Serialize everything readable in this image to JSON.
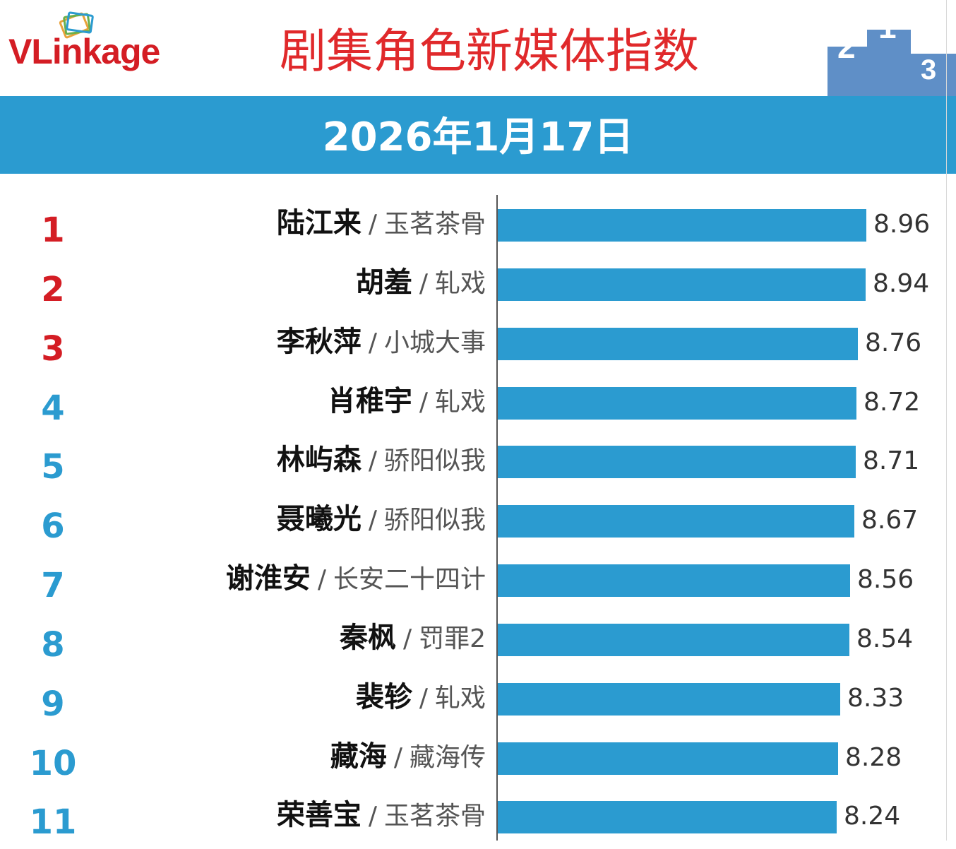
{
  "header": {
    "brand": "VLinkage",
    "title": "剧集角色新媒体指数",
    "podium_digits": [
      "2",
      "1",
      "3"
    ]
  },
  "date": "2026年1月17日",
  "colors": {
    "bar": "#2b9bd0",
    "rank_top": "#d41d24",
    "rank_other": "#2b9bd0",
    "title": "#e0292b"
  },
  "chart_data": {
    "type": "bar",
    "orientation": "horizontal",
    "title": "剧集角色新媒体指数",
    "subtitle": "2026年1月17日",
    "xlim": [
      0,
      9.5
    ],
    "items": [
      {
        "rank": "1",
        "role": "陆江来",
        "show": "玉茗茶骨",
        "value": 8.96,
        "label": "8.96"
      },
      {
        "rank": "2",
        "role": "胡羞",
        "show": "轧戏",
        "value": 8.94,
        "label": "8.94"
      },
      {
        "rank": "3",
        "role": "李秋萍",
        "show": "小城大事",
        "value": 8.76,
        "label": "8.76"
      },
      {
        "rank": "4",
        "role": "肖稚宇",
        "show": "轧戏",
        "value": 8.72,
        "label": "8.72"
      },
      {
        "rank": "5",
        "role": "林屿森",
        "show": "骄阳似我",
        "value": 8.71,
        "label": "8.71"
      },
      {
        "rank": "6",
        "role": "聂曦光",
        "show": "骄阳似我",
        "value": 8.67,
        "label": "8.67"
      },
      {
        "rank": "7",
        "role": "谢淮安",
        "show": "长安二十四计",
        "value": 8.56,
        "label": "8.56"
      },
      {
        "rank": "8",
        "role": "秦枫",
        "show": "罚罪2",
        "value": 8.54,
        "label": "8.54"
      },
      {
        "rank": "9",
        "role": "裴轸",
        "show": "轧戏",
        "value": 8.33,
        "label": "8.33"
      },
      {
        "rank": "10",
        "role": "藏海",
        "show": "藏海传",
        "value": 8.28,
        "label": "8.28"
      },
      {
        "rank": "11",
        "role": "荣善宝",
        "show": "玉茗茶骨",
        "value": 8.24,
        "label": "8.24"
      }
    ]
  }
}
